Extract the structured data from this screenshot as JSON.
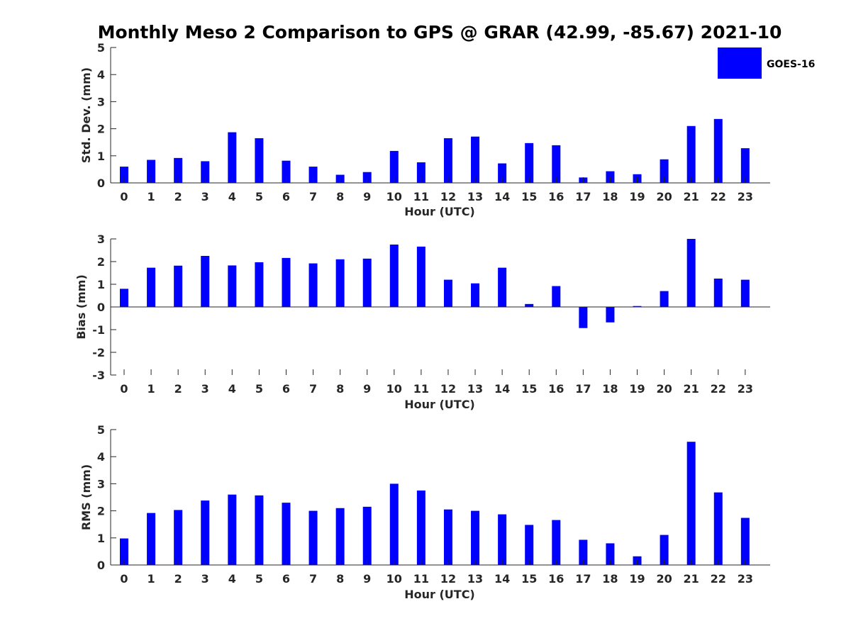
{
  "title": "Monthly Meso 2 Comparison to GPS @ GRAR (42.99, -85.67) 2021-10",
  "legend": {
    "label": "GOES-16",
    "color": "#0000ff",
    "position": "top-right"
  },
  "bar_color": "#0000ff",
  "chart_data": [
    {
      "type": "bar",
      "series_name": "GOES-16",
      "categories": [
        "0",
        "1",
        "2",
        "3",
        "4",
        "5",
        "6",
        "7",
        "8",
        "9",
        "10",
        "11",
        "12",
        "13",
        "14",
        "15",
        "16",
        "17",
        "18",
        "19",
        "20",
        "21",
        "22",
        "23"
      ],
      "values": [
        0.6,
        0.85,
        0.92,
        0.8,
        1.87,
        1.65,
        0.82,
        0.6,
        0.3,
        0.4,
        1.18,
        0.76,
        1.65,
        1.71,
        0.72,
        1.47,
        1.39,
        0.2,
        0.43,
        0.32,
        0.87,
        2.1,
        2.36,
        1.28
      ],
      "xlabel": "Hour (UTC)",
      "ylabel": "Std. Dev. (mm)",
      "ylim": [
        0,
        5
      ],
      "yticks": [
        "0",
        "1",
        "2",
        "3",
        "4",
        "5"
      ],
      "grid": false
    },
    {
      "type": "bar",
      "series_name": "GOES-16",
      "categories": [
        "0",
        "1",
        "2",
        "3",
        "4",
        "5",
        "6",
        "7",
        "8",
        "9",
        "10",
        "11",
        "12",
        "13",
        "14",
        "15",
        "16",
        "17",
        "18",
        "19",
        "20",
        "21",
        "22",
        "23"
      ],
      "values": [
        0.8,
        1.73,
        1.82,
        2.25,
        1.83,
        1.97,
        2.16,
        1.92,
        2.1,
        2.13,
        2.75,
        2.66,
        1.2,
        1.04,
        1.73,
        0.13,
        0.92,
        -0.93,
        -0.68,
        0.04,
        0.7,
        3.0,
        1.25,
        1.2
      ],
      "xlabel": "Hour (UTC)",
      "ylabel": "Bias (mm)",
      "ylim": [
        -3,
        3
      ],
      "yticks": [
        "-3",
        "-2",
        "-1",
        "0",
        "1",
        "2",
        "3"
      ],
      "grid": false
    },
    {
      "type": "bar",
      "series_name": "GOES-16",
      "categories": [
        "0",
        "1",
        "2",
        "3",
        "4",
        "5",
        "6",
        "7",
        "8",
        "9",
        "10",
        "11",
        "12",
        "13",
        "14",
        "15",
        "16",
        "17",
        "18",
        "19",
        "20",
        "21",
        "22",
        "23"
      ],
      "values": [
        0.98,
        1.92,
        2.03,
        2.38,
        2.6,
        2.57,
        2.3,
        2.0,
        2.1,
        2.15,
        3.0,
        2.75,
        2.05,
        2.0,
        1.87,
        1.48,
        1.66,
        0.93,
        0.8,
        0.32,
        1.11,
        4.55,
        2.68,
        1.74
      ],
      "xlabel": "Hour (UTC)",
      "ylabel": "RMS (mm)",
      "ylim": [
        0,
        5
      ],
      "yticks": [
        "0",
        "1",
        "2",
        "3",
        "4",
        "5"
      ],
      "grid": false
    }
  ]
}
